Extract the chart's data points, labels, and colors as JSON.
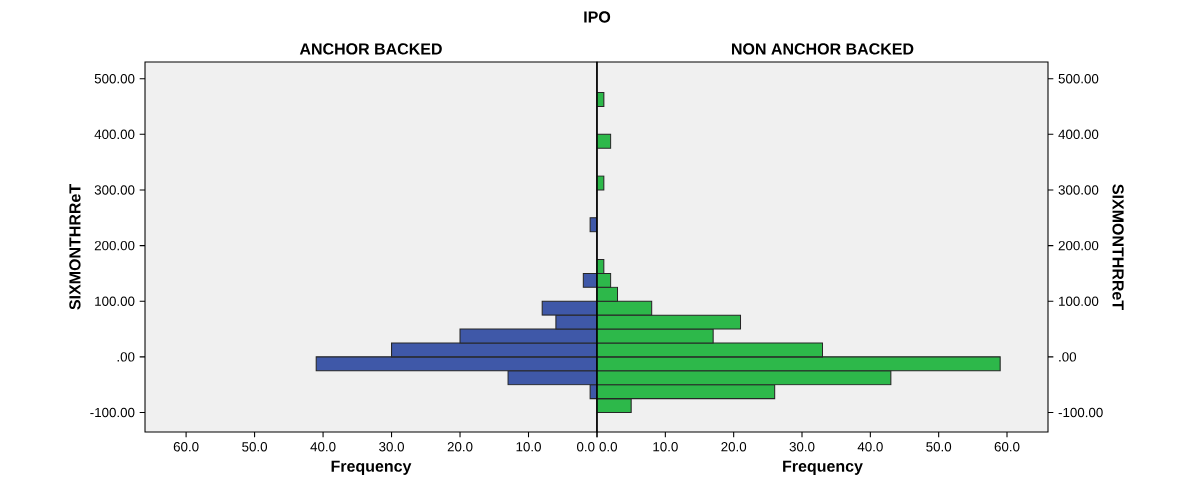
{
  "chart_data": [
    {
      "type": "histogram",
      "title": "IPO",
      "subtitle": "ANCHOR BACKED",
      "orientation": "horizontal",
      "xlabel": "Frequency",
      "ylabel": "SIXMONTHRReT",
      "color": "#3f58a8",
      "bins": [
        -100,
        -75,
        -50,
        -25,
        0,
        25,
        50,
        75,
        100,
        125,
        150,
        175,
        200,
        225,
        250,
        275,
        300,
        325,
        350,
        375,
        400,
        425,
        450,
        475,
        500
      ],
      "values": [
        0,
        1,
        13,
        41,
        30,
        20,
        6,
        8,
        0,
        2,
        0,
        0,
        0,
        1,
        0,
        0,
        0,
        0,
        0,
        0,
        0,
        0,
        0,
        0
      ],
      "xlim": [
        66,
        0
      ],
      "xticks": [
        {
          "value": 60,
          "label": "60.0"
        },
        {
          "value": 50,
          "label": "50.0"
        },
        {
          "value": 40,
          "label": "40.0"
        },
        {
          "value": 30,
          "label": "30.0"
        },
        {
          "value": 20,
          "label": "20.0"
        },
        {
          "value": 10,
          "label": "10.0"
        },
        {
          "value": 0,
          "label": "0.0"
        }
      ],
      "ylim": [
        -135,
        530
      ],
      "yticks": [
        {
          "value": -100,
          "label": "-100.00"
        },
        {
          "value": 0,
          "label": ".00"
        },
        {
          "value": 100,
          "label": "100.00"
        },
        {
          "value": 200,
          "label": "200.00"
        },
        {
          "value": 300,
          "label": "300.00"
        },
        {
          "value": 400,
          "label": "400.00"
        },
        {
          "value": 500,
          "label": "500.00"
        }
      ]
    },
    {
      "type": "histogram",
      "subtitle": "NON ANCHOR BACKED",
      "orientation": "horizontal",
      "xlabel": "Frequency",
      "ylabel": "SIXMONTHRReT",
      "color": "#2db84a",
      "bins": [
        -100,
        -75,
        -50,
        -25,
        0,
        25,
        50,
        75,
        100,
        125,
        150,
        175,
        200,
        225,
        250,
        275,
        300,
        325,
        350,
        375,
        400,
        425,
        450,
        475,
        500
      ],
      "values": [
        5,
        26,
        43,
        59,
        33,
        17,
        21,
        8,
        3,
        2,
        1,
        0,
        0,
        0,
        0,
        0,
        1,
        0,
        0,
        2,
        0,
        0,
        1,
        0
      ],
      "xlim": [
        0,
        66
      ],
      "xticks": [
        {
          "value": 0,
          "label": "0.0"
        },
        {
          "value": 10,
          "label": "10.0"
        },
        {
          "value": 20,
          "label": "20.0"
        },
        {
          "value": 30,
          "label": "30.0"
        },
        {
          "value": 40,
          "label": "40.0"
        },
        {
          "value": 50,
          "label": "50.0"
        },
        {
          "value": 60,
          "label": "60.0"
        }
      ],
      "ylim": [
        -135,
        530
      ],
      "yticks": [
        {
          "value": -100,
          "label": "-100.00"
        },
        {
          "value": 0,
          "label": ".00"
        },
        {
          "value": 100,
          "label": "100.00"
        },
        {
          "value": 200,
          "label": "200.00"
        },
        {
          "value": 300,
          "label": "300.00"
        },
        {
          "value": 400,
          "label": "400.00"
        },
        {
          "value": 500,
          "label": "500.00"
        }
      ]
    }
  ]
}
